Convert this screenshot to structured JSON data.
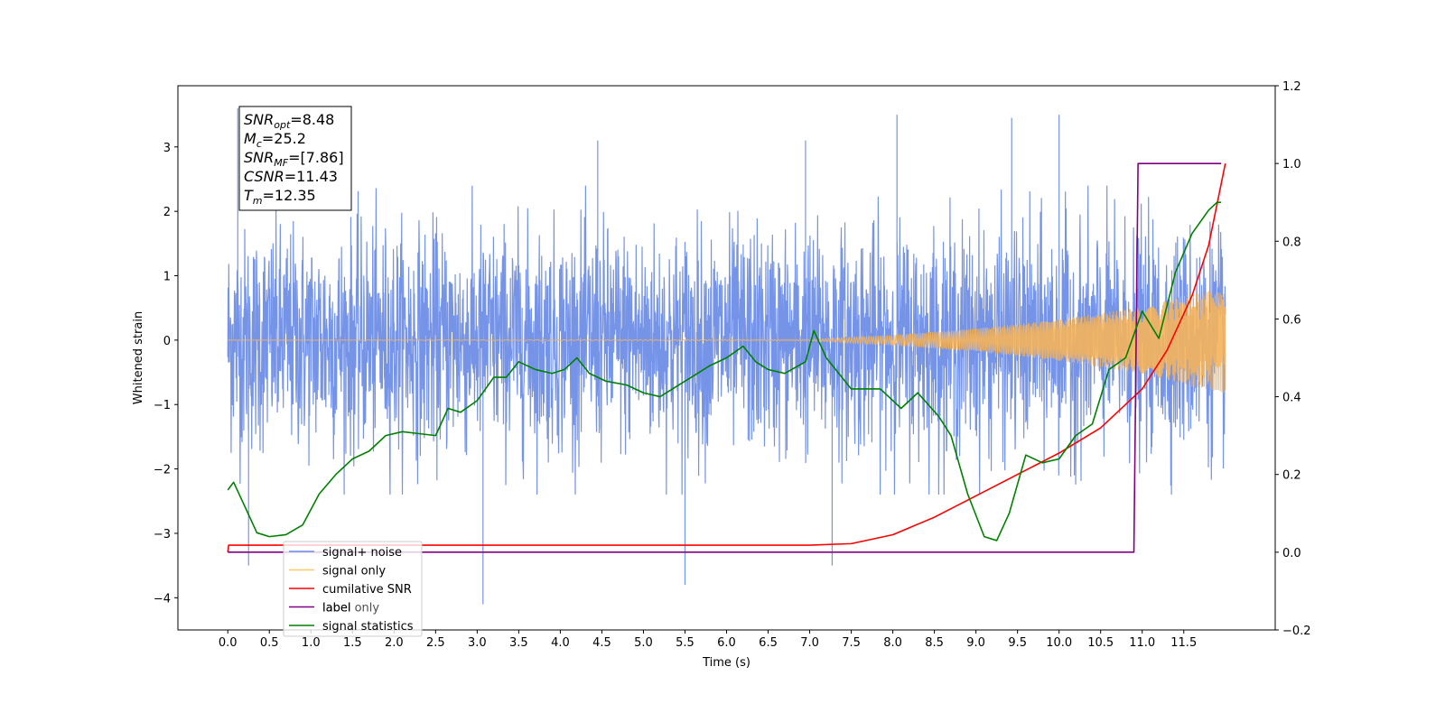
{
  "chart_data": {
    "type": "line",
    "xlabel": "Time (s)",
    "ylabel": "Whitened strain",
    "xlim": [
      -0.6,
      12.6
    ],
    "ylim": [
      -4.5,
      3.95
    ],
    "ylim_right": [
      -0.2,
      1.2
    ],
    "x_ticks": [
      "0.0",
      "0.5",
      "1.0",
      "1.5",
      "2.0",
      "2.5",
      "3.0",
      "3.5",
      "4.0",
      "4.5",
      "5.0",
      "5.5",
      "6.0",
      "6.5",
      "7.0",
      "7.5",
      "8.0",
      "8.5",
      "9.0",
      "9.5",
      "10.0",
      "10.5",
      "11.0",
      "11.5"
    ],
    "y_ticks": [
      "3",
      "2",
      "1",
      "0",
      "−1",
      "−2",
      "−3",
      "−4"
    ],
    "y_ticks_right": [
      "1.2",
      "1.0",
      "0.8",
      "0.6",
      "0.4",
      "0.2",
      "0.0",
      "−0.2"
    ],
    "legend_position": "lower-left",
    "annotation": {
      "snr_opt": {
        "symbol": "SNR",
        "sub": "opt",
        "value": "=8.48"
      },
      "mc": {
        "symbol": "M",
        "sub": "c",
        "value": "=25.2"
      },
      "snr_mf": {
        "symbol": "SNR",
        "sub": "MF",
        "value": "=[7.86]"
      },
      "csnr": {
        "symbol": "CSNR",
        "value": "=11.43"
      },
      "tm": {
        "symbol": "T",
        "sub": "m",
        "value": "=12.35"
      }
    },
    "series": [
      {
        "name": "signal+ noise",
        "axis": "left",
        "color": "#6f8ee6",
        "description_values": "noise band roughly between -2.4 and 2.4 with spikes up to 3.6 and down to -4.1",
        "spikes": [
          [
            0.12,
            3.6
          ],
          [
            0.25,
            -3.5
          ],
          [
            3.07,
            -4.1
          ],
          [
            5.5,
            -3.8
          ],
          [
            7.27,
            -3.5
          ],
          [
            9.43,
            3.45
          ],
          [
            10.0,
            3.5
          ],
          [
            8.05,
            3.5
          ],
          [
            4.45,
            3.1
          ],
          [
            6.95,
            3.1
          ]
        ]
      },
      {
        "name": "signal only",
        "axis": "left",
        "color": "#f5b35a",
        "envelope": [
          [
            0.0,
            0.0
          ],
          [
            7.0,
            0.01
          ],
          [
            8.0,
            0.08
          ],
          [
            9.0,
            0.18
          ],
          [
            10.0,
            0.32
          ],
          [
            11.0,
            0.52
          ],
          [
            11.6,
            0.72
          ],
          [
            12.0,
            0.82
          ]
        ]
      },
      {
        "name": "cumilative SNR",
        "axis": "right",
        "color": "#ff0000",
        "x": [
          0.0,
          0.01,
          7.0,
          7.5,
          8.0,
          8.5,
          9.0,
          9.5,
          10.0,
          10.5,
          11.0,
          11.3,
          11.6,
          11.8,
          12.0
        ],
        "y": [
          0.0,
          0.018,
          0.018,
          0.022,
          0.045,
          0.09,
          0.145,
          0.2,
          0.255,
          0.32,
          0.42,
          0.52,
          0.66,
          0.79,
          1.0
        ]
      },
      {
        "name": "label",
        "axis": "right",
        "color": "#800080",
        "x": [
          0.0,
          10.9,
          10.95,
          11.95,
          11.95
        ],
        "y": [
          0.0,
          0.0,
          1.0,
          1.0,
          1.0
        ]
      },
      {
        "name": "label only",
        "axis": "right",
        "color": "#800080",
        "hidden": true
      },
      {
        "name": "signal statistics",
        "axis": "right",
        "color": "#008000",
        "x": [
          0.0,
          0.07,
          0.2,
          0.35,
          0.5,
          0.7,
          0.9,
          1.1,
          1.3,
          1.5,
          1.7,
          1.9,
          2.1,
          2.3,
          2.5,
          2.65,
          2.8,
          3.0,
          3.2,
          3.35,
          3.5,
          3.7,
          3.9,
          4.05,
          4.2,
          4.35,
          4.55,
          4.8,
          5.0,
          5.2,
          5.5,
          5.8,
          6.0,
          6.2,
          6.35,
          6.5,
          6.7,
          6.95,
          7.05,
          7.2,
          7.5,
          7.85,
          8.1,
          8.3,
          8.55,
          8.7,
          8.9,
          9.1,
          9.25,
          9.4,
          9.6,
          9.8,
          10.0,
          10.2,
          10.4,
          10.6,
          10.8,
          11.0,
          11.2,
          11.4,
          11.6,
          11.8,
          11.9,
          11.95
        ],
        "y": [
          0.16,
          0.18,
          0.12,
          0.05,
          0.04,
          0.045,
          0.07,
          0.15,
          0.2,
          0.24,
          0.26,
          0.3,
          0.31,
          0.305,
          0.3,
          0.37,
          0.36,
          0.39,
          0.45,
          0.45,
          0.49,
          0.47,
          0.46,
          0.47,
          0.5,
          0.46,
          0.44,
          0.43,
          0.41,
          0.4,
          0.44,
          0.48,
          0.5,
          0.53,
          0.49,
          0.47,
          0.46,
          0.49,
          0.57,
          0.5,
          0.42,
          0.42,
          0.37,
          0.41,
          0.35,
          0.3,
          0.15,
          0.04,
          0.03,
          0.1,
          0.25,
          0.23,
          0.24,
          0.3,
          0.33,
          0.47,
          0.5,
          0.62,
          0.55,
          0.72,
          0.82,
          0.88,
          0.9,
          0.9
        ]
      }
    ]
  }
}
